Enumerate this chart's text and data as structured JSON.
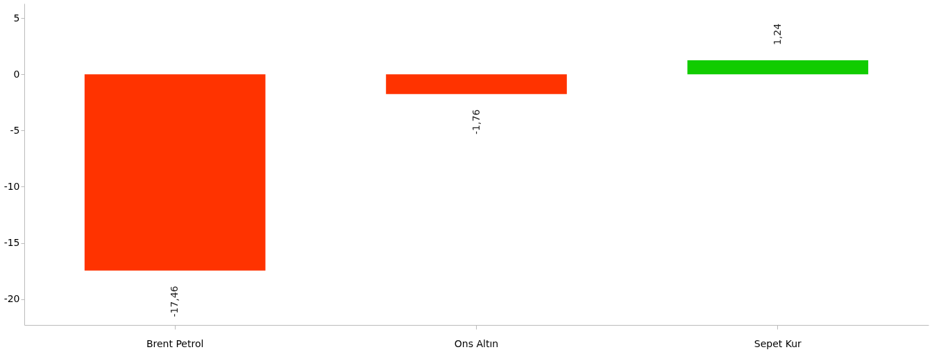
{
  "chart_data": {
    "type": "bar",
    "categories": [
      "Brent Petrol",
      "Ons Altın",
      "Sepet Kur"
    ],
    "values": [
      -17.46,
      -1.76,
      1.24
    ],
    "colors": [
      "#ff3300",
      "#ff3300",
      "#11cc00"
    ],
    "value_labels": [
      "-17,46",
      "-1,76",
      "1,24"
    ],
    "ylim": [
      -22.3,
      6.3
    ],
    "yticks": [
      5,
      0,
      -5,
      -10,
      -15,
      -20
    ],
    "grid": false
  }
}
